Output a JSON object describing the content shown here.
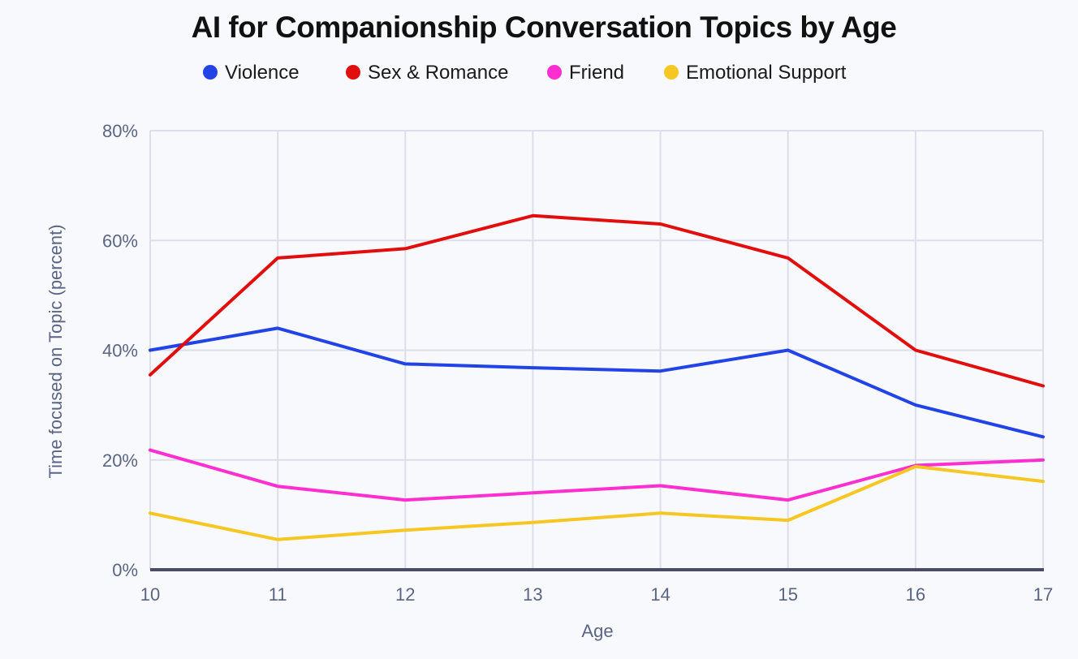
{
  "chart_data": {
    "type": "line",
    "title": "AI for Companionship Conversation Topics by Age",
    "xlabel": "Age",
    "ylabel": "Time focused on Topic (percent)",
    "x": [
      10,
      11,
      12,
      13,
      14,
      15,
      16,
      17
    ],
    "x_tick_labels": [
      "10",
      "11",
      "12",
      "13",
      "14",
      "15",
      "16",
      "17"
    ],
    "ylim": [
      0,
      80
    ],
    "y_ticks": [
      0,
      20,
      40,
      60,
      80
    ],
    "y_tick_labels": [
      "0%",
      "20%",
      "40%",
      "60%",
      "80%"
    ],
    "grid": true,
    "legend_position": "top",
    "series": [
      {
        "name": "Violence",
        "color": "#2243E6",
        "values": [
          40,
          44,
          37.5,
          36.8,
          36.2,
          40,
          30,
          24.2
        ]
      },
      {
        "name": "Sex & Romance",
        "color": "#E20D0D",
        "values": [
          35.5,
          56.8,
          58.5,
          64.5,
          63,
          56.8,
          40,
          33.5
        ]
      },
      {
        "name": "Friend",
        "color": "#FF2ED1",
        "values": [
          21.8,
          15.2,
          12.7,
          14,
          15.3,
          12.7,
          19,
          20
        ]
      },
      {
        "name": "Emotional Support",
        "color": "#F6C723",
        "values": [
          10.3,
          5.5,
          7.2,
          8.6,
          10.3,
          9,
          18.8,
          16.1
        ]
      }
    ]
  }
}
